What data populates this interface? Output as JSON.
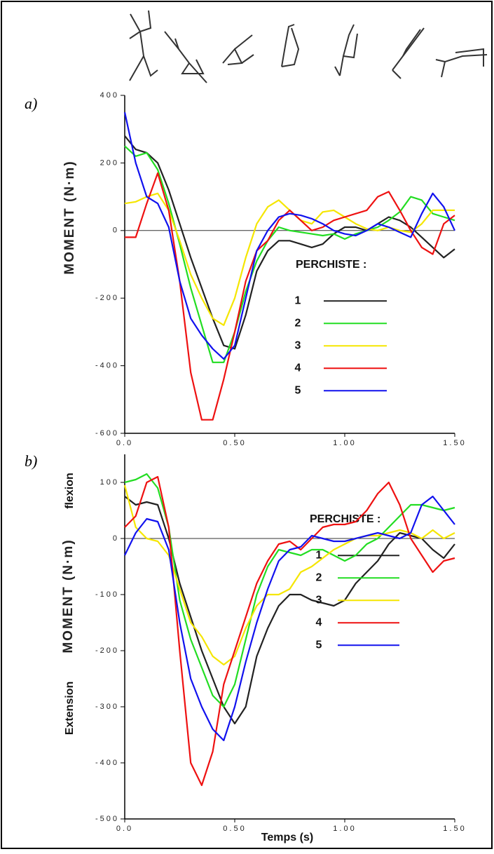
{
  "chart_data": [
    {
      "type": "line",
      "label": "a)",
      "y_label": "MOMENT (N·m)",
      "legend_title": "PERCHISTE :",
      "xlim": [
        0,
        1.5
      ],
      "ylim": [
        -600,
        400
      ],
      "xticks": [
        {
          "value": 0,
          "label": "0.0"
        },
        {
          "value": 0.5,
          "label": "0.50"
        },
        {
          "value": 1,
          "label": "1.00"
        },
        {
          "value": 1.5,
          "label": "1.50"
        }
      ],
      "yticks": [
        400,
        200,
        0,
        -200,
        -400,
        -600
      ],
      "x": [
        0,
        0.05,
        0.1,
        0.15,
        0.2,
        0.25,
        0.3,
        0.35,
        0.4,
        0.45,
        0.5,
        0.55,
        0.6,
        0.65,
        0.7,
        0.75,
        0.8,
        0.85,
        0.9,
        0.95,
        1,
        1.05,
        1.1,
        1.15,
        1.2,
        1.25,
        1.3,
        1.35,
        1.4,
        1.45,
        1.5
      ],
      "series": [
        {
          "name": "1",
          "color": "#222222",
          "values": [
            280,
            240,
            230,
            200,
            120,
            20,
            -80,
            -170,
            -260,
            -340,
            -350,
            -250,
            -120,
            -60,
            -30,
            -30,
            -40,
            -50,
            -40,
            -10,
            10,
            10,
            0,
            20,
            40,
            30,
            10,
            -20,
            -50,
            -80,
            -55
          ]
        },
        {
          "name": "2",
          "color": "#22dd22",
          "values": [
            250,
            220,
            230,
            180,
            80,
            -40,
            -170,
            -280,
            -390,
            -390,
            -300,
            -180,
            -90,
            -30,
            10,
            0,
            -5,
            -10,
            -15,
            -10,
            -25,
            -10,
            0,
            10,
            30,
            55,
            100,
            90,
            50,
            40,
            30
          ]
        },
        {
          "name": "3",
          "color": "#f5e600",
          "values": [
            80,
            85,
            100,
            110,
            60,
            -30,
            -130,
            -200,
            -260,
            -280,
            -200,
            -80,
            20,
            70,
            90,
            60,
            30,
            20,
            55,
            60,
            40,
            20,
            5,
            0,
            10,
            0,
            -5,
            20,
            60,
            60,
            60
          ]
        },
        {
          "name": "4",
          "color": "#ee1111",
          "values": [
            -20,
            -20,
            80,
            170,
            60,
            -150,
            -420,
            -560,
            -560,
            -440,
            -300,
            -150,
            -60,
            -30,
            30,
            60,
            30,
            0,
            10,
            30,
            40,
            50,
            60,
            100,
            115,
            60,
            0,
            -50,
            -70,
            20,
            45
          ]
        },
        {
          "name": "5",
          "color": "#1111ee",
          "values": [
            350,
            200,
            100,
            80,
            10,
            -150,
            -260,
            -310,
            -350,
            -380,
            -340,
            -200,
            -60,
            0,
            40,
            50,
            45,
            35,
            20,
            0,
            -10,
            -15,
            0,
            20,
            10,
            -5,
            -20,
            50,
            110,
            70,
            0
          ]
        }
      ]
    },
    {
      "type": "line",
      "label": "b)",
      "y_label": "MOMENT (N·m)",
      "legend_title": "PERCHISTE :",
      "annotations": [
        "flexion",
        "Extension"
      ],
      "x_label": "Temps (s)",
      "xlim": [
        0,
        1.5
      ],
      "ylim": [
        -500,
        150
      ],
      "xticks": [
        {
          "value": 0,
          "label": "0.0"
        },
        {
          "value": 0.5,
          "label": "0.50"
        },
        {
          "value": 1,
          "label": "1.00"
        },
        {
          "value": 1.5,
          "label": "1.50"
        }
      ],
      "yticks": [
        100,
        0,
        -100,
        -200,
        -300,
        -400,
        -500
      ],
      "x": [
        0,
        0.05,
        0.1,
        0.15,
        0.2,
        0.25,
        0.3,
        0.35,
        0.4,
        0.45,
        0.5,
        0.55,
        0.6,
        0.65,
        0.7,
        0.75,
        0.8,
        0.85,
        0.9,
        0.95,
        1,
        1.05,
        1.1,
        1.15,
        1.2,
        1.25,
        1.3,
        1.35,
        1.4,
        1.45,
        1.5
      ],
      "series": [
        {
          "name": "1",
          "color": "#222222",
          "values": [
            75,
            60,
            65,
            60,
            0,
            -80,
            -140,
            -200,
            -250,
            -300,
            -330,
            -300,
            -210,
            -160,
            -120,
            -100,
            -100,
            -110,
            -115,
            -120,
            -110,
            -80,
            -60,
            -40,
            -10,
            10,
            5,
            0,
            -20,
            -35,
            -10
          ]
        },
        {
          "name": "2",
          "color": "#22dd22",
          "values": [
            100,
            105,
            115,
            90,
            20,
            -110,
            -180,
            -230,
            -280,
            -300,
            -260,
            -180,
            -100,
            -50,
            -20,
            -25,
            -30,
            -20,
            -20,
            -30,
            -40,
            -30,
            -10,
            0,
            20,
            40,
            60,
            60,
            55,
            50,
            55
          ]
        },
        {
          "name": "3",
          "color": "#f5e600",
          "values": [
            95,
            20,
            0,
            -5,
            -30,
            -90,
            -150,
            -175,
            -210,
            -225,
            -210,
            -160,
            -120,
            -100,
            -100,
            -90,
            -60,
            -50,
            -35,
            -20,
            -10,
            0,
            5,
            5,
            10,
            15,
            10,
            0,
            15,
            0,
            10
          ]
        },
        {
          "name": "4",
          "color": "#ee1111",
          "values": [
            20,
            40,
            100,
            110,
            20,
            -200,
            -400,
            -440,
            -380,
            -260,
            -200,
            -140,
            -80,
            -40,
            -10,
            -5,
            -20,
            0,
            20,
            25,
            25,
            30,
            50,
            80,
            100,
            60,
            0,
            -30,
            -60,
            -40,
            -35
          ]
        },
        {
          "name": "5",
          "color": "#1111ee",
          "values": [
            -30,
            10,
            35,
            30,
            -20,
            -150,
            -250,
            -300,
            -340,
            -360,
            -300,
            -220,
            -150,
            -90,
            -40,
            -20,
            -15,
            5,
            0,
            -5,
            -5,
            0,
            5,
            10,
            5,
            0,
            10,
            60,
            75,
            50,
            25
          ]
        }
      ]
    }
  ]
}
